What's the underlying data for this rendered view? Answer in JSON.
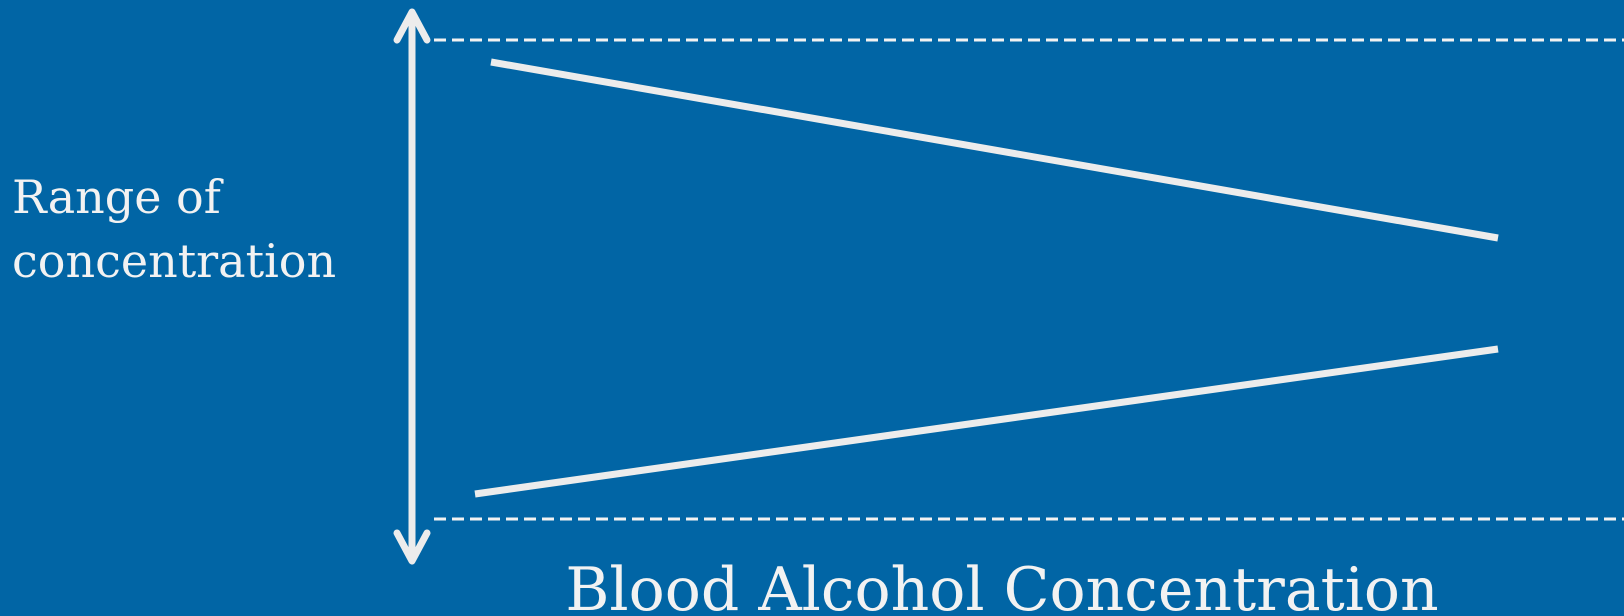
{
  "diagram": {
    "range_label_line1": "Range of",
    "range_label_line2": "concentration",
    "axis_label": "Blood Alcohol Concentration",
    "colors": {
      "background": "#0165a5",
      "foreground": "#ececec"
    }
  }
}
